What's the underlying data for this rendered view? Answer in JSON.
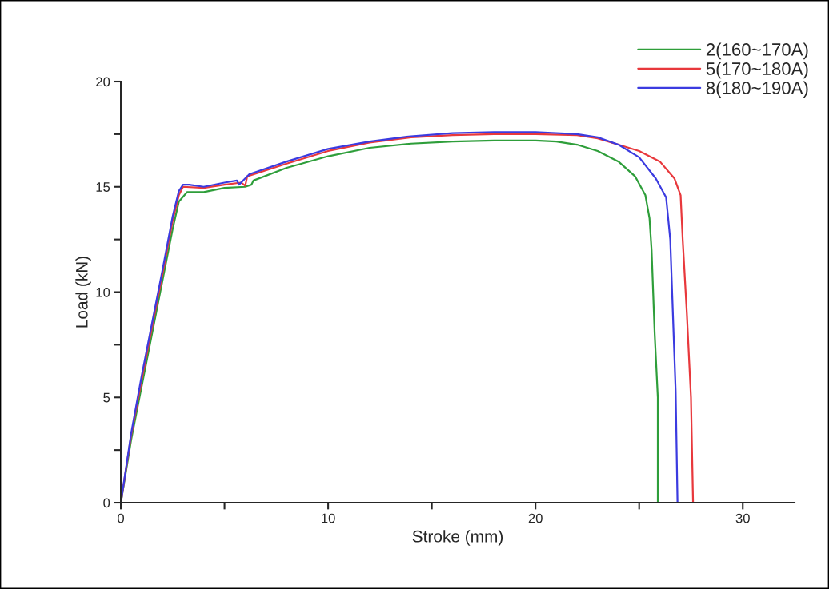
{
  "chart_data": {
    "type": "line",
    "xlabel": "Stroke (mm)",
    "ylabel": "Load (kN)",
    "xlim": [
      0,
      32.5
    ],
    "ylim": [
      0,
      20
    ],
    "xticks": [
      0,
      {
        "value": 5,
        "label": null
      },
      10,
      {
        "value": 15,
        "label": null
      },
      20,
      {
        "value": 25,
        "label": null
      },
      30
    ],
    "yticks": [
      0,
      {
        "value": 2.5,
        "label": null
      },
      5,
      {
        "value": 7.5,
        "label": null
      },
      10,
      {
        "value": 12.5,
        "label": null
      },
      15,
      {
        "value": 17.5,
        "label": null
      },
      20
    ],
    "grid": false,
    "legend": "top right",
    "marker": "none",
    "line_style": "solid",
    "series": [
      {
        "name": "2(160~170A)",
        "color": "#2e9e3a",
        "x": [
          0,
          0.5,
          1,
          1.5,
          2,
          2.5,
          2.8,
          3.2,
          4,
          5,
          6,
          6.3,
          6.4,
          8,
          10,
          12,
          14,
          16,
          18,
          20,
          21,
          22,
          23,
          24,
          24.8,
          25.3,
          25.5,
          25.6,
          25.75,
          25.9,
          25.9
        ],
        "values": [
          0,
          3.0,
          5.5,
          8.0,
          10.5,
          13.0,
          14.3,
          14.75,
          14.75,
          14.95,
          15.0,
          15.1,
          15.3,
          15.9,
          16.45,
          16.85,
          17.05,
          17.15,
          17.2,
          17.2,
          17.15,
          17.0,
          16.7,
          16.2,
          15.5,
          14.6,
          13.5,
          12.0,
          8.0,
          5.0,
          0
        ]
      },
      {
        "name": "5(170~180A)",
        "color": "#e8383c",
        "x": [
          0,
          0.5,
          1,
          1.5,
          2,
          2.5,
          2.8,
          3.0,
          4,
          5,
          5.8,
          6,
          6.1,
          8,
          10,
          12,
          14,
          16,
          18,
          20,
          22,
          23,
          24,
          25,
          26,
          26.7,
          27.0,
          27.1,
          27.3,
          27.5,
          27.6
        ],
        "values": [
          0,
          3.2,
          5.8,
          8.3,
          10.8,
          13.4,
          14.6,
          15.0,
          14.95,
          15.1,
          15.2,
          15.05,
          15.5,
          16.1,
          16.7,
          17.1,
          17.35,
          17.45,
          17.5,
          17.5,
          17.45,
          17.3,
          17.0,
          16.7,
          16.2,
          15.4,
          14.6,
          12.5,
          9.0,
          5.0,
          0
        ]
      },
      {
        "name": "8(180~190A)",
        "color": "#3b3be0",
        "x": [
          0,
          0.5,
          1,
          1.5,
          2,
          2.5,
          2.8,
          3.0,
          3.3,
          4,
          5,
          5.6,
          5.7,
          6.0,
          6.2,
          8,
          10,
          12,
          14,
          16,
          18,
          20,
          22,
          23,
          24,
          25,
          25.8,
          26.3,
          26.5,
          26.76,
          26.85
        ],
        "values": [
          0,
          3.3,
          6.0,
          8.5,
          11.0,
          13.6,
          14.8,
          15.1,
          15.1,
          15.0,
          15.2,
          15.3,
          15.1,
          15.4,
          15.6,
          16.2,
          16.8,
          17.15,
          17.4,
          17.55,
          17.6,
          17.6,
          17.5,
          17.35,
          17.0,
          16.4,
          15.4,
          14.5,
          12.5,
          5.3,
          0
        ]
      }
    ]
  }
}
